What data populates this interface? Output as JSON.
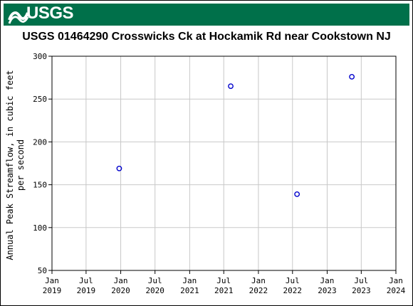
{
  "header": {
    "logo_text": "USGS",
    "colors": {
      "banner": "#00704A",
      "logo_fg": "#ffffff"
    }
  },
  "chart_data": {
    "type": "scatter",
    "title": "USGS 01464290 Crosswicks Ck at Hockamik Rd near Cookstown NJ",
    "ylabel_lines": [
      "Annual Peak Streamflow, in cubic feet",
      "per second"
    ],
    "xlabel": "",
    "ylim": [
      50,
      300
    ],
    "yticks": [
      50,
      100,
      150,
      200,
      250,
      300
    ],
    "xlim": [
      "2019-01-01",
      "2024-01-01"
    ],
    "xticks": [
      {
        "date": "2019-01-01",
        "line1": "Jan",
        "line2": "2019"
      },
      {
        "date": "2019-07-01",
        "line1": "Jul",
        "line2": "2019"
      },
      {
        "date": "2020-01-01",
        "line1": "Jan",
        "line2": "2020"
      },
      {
        "date": "2020-07-01",
        "line1": "Jul",
        "line2": "2020"
      },
      {
        "date": "2021-01-01",
        "line1": "Jan",
        "line2": "2021"
      },
      {
        "date": "2021-07-01",
        "line1": "Jul",
        "line2": "2021"
      },
      {
        "date": "2022-01-01",
        "line1": "Jan",
        "line2": "2022"
      },
      {
        "date": "2022-07-01",
        "line1": "Jul",
        "line2": "2022"
      },
      {
        "date": "2023-01-01",
        "line1": "Jan",
        "line2": "2023"
      },
      {
        "date": "2023-07-01",
        "line1": "Jul",
        "line2": "2023"
      },
      {
        "date": "2024-01-01",
        "line1": "Jan",
        "line2": "2024"
      }
    ],
    "grid": true,
    "marker": "open-circle",
    "marker_color": "#0000cc",
    "points": [
      {
        "x": "2019-12-24",
        "y": 169
      },
      {
        "x": "2021-08-07",
        "y": 265
      },
      {
        "x": "2022-07-25",
        "y": 139
      },
      {
        "x": "2023-05-12",
        "y": 276
      }
    ]
  }
}
